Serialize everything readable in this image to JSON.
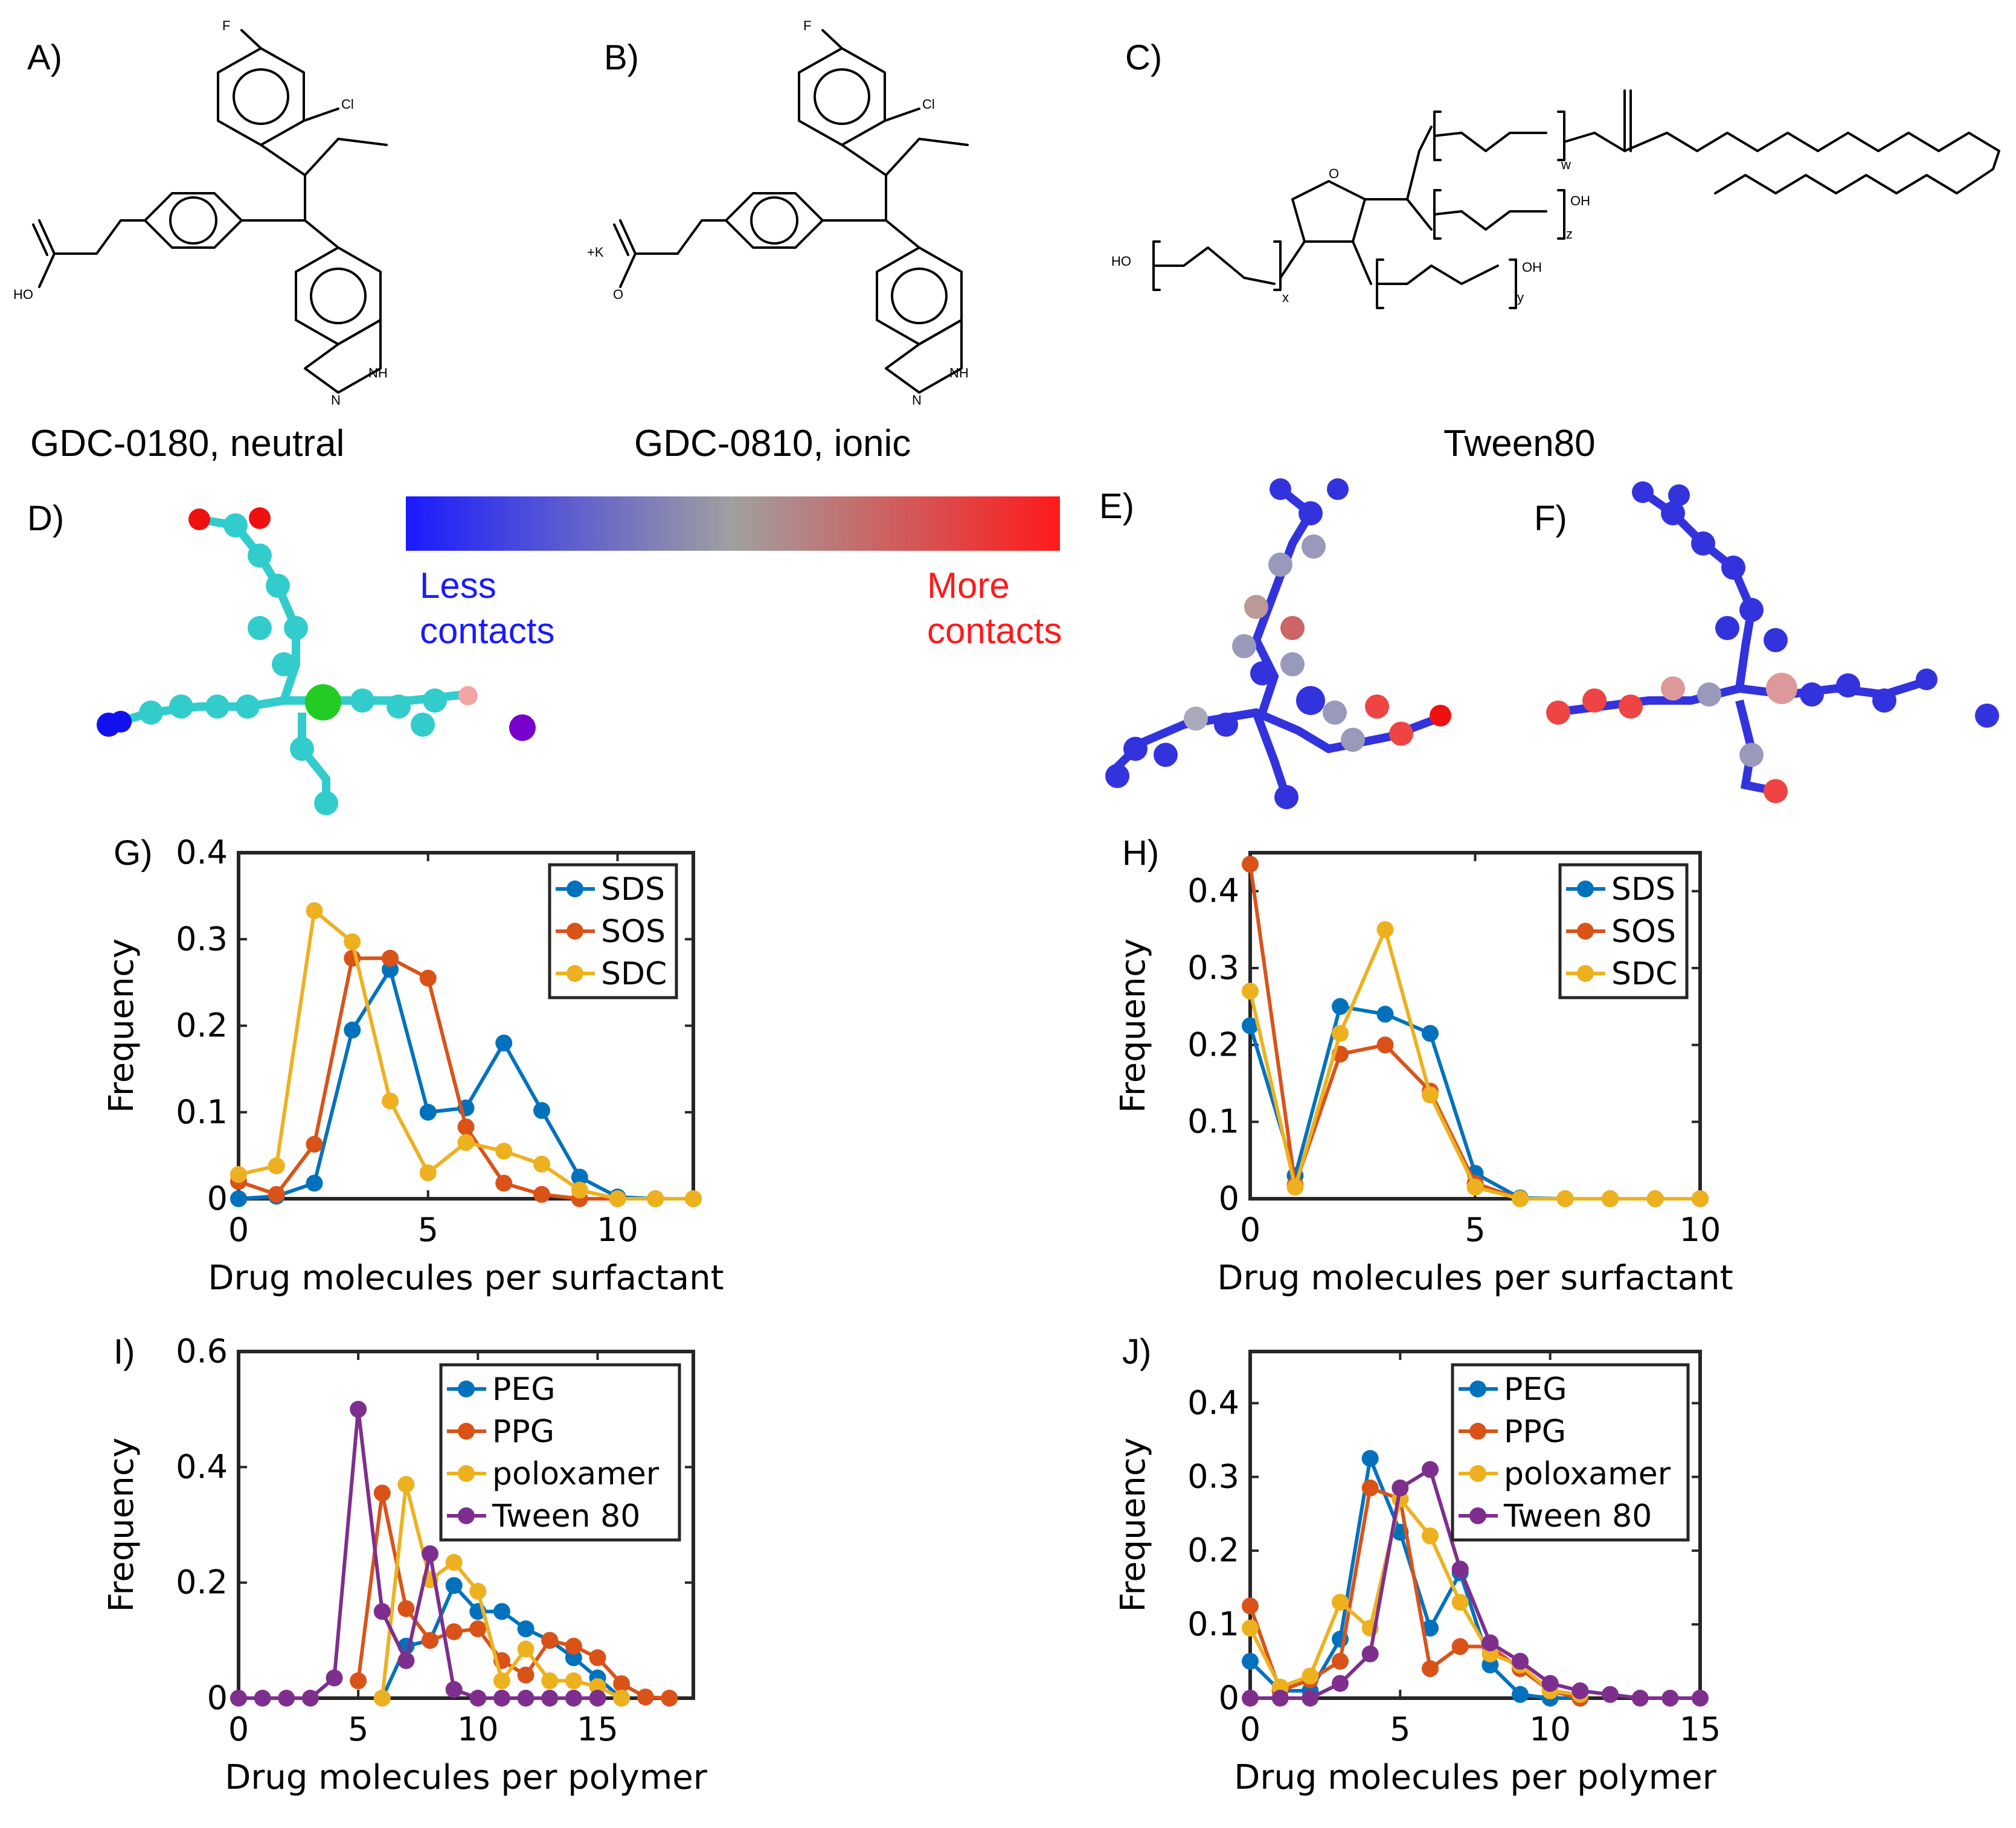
{
  "panels": {
    "a": "A)",
    "b": "B)",
    "c": "C)",
    "d": "D)",
    "e": "E)",
    "f": "F)",
    "g": "G)",
    "h": "H)",
    "i": "I)",
    "j": "J)"
  },
  "molecules": {
    "a": {
      "caption": "GDC-0180, neutral",
      "atoms": {
        "F": "F",
        "Cl": "Cl",
        "HO": "HO",
        "NH": "NH",
        "N": "N"
      }
    },
    "b": {
      "caption": "GDC-0810, ionic",
      "atoms": {
        "F": "F",
        "Cl": "Cl",
        "K": "+K",
        "O": "O",
        "NH": "NH",
        "N": "N"
      }
    },
    "c": {
      "caption": "Tween80",
      "atoms": {
        "HO": "HO",
        "OH": "OH",
        "O": "O",
        "w": "w",
        "x": "x",
        "y": "y",
        "z": "z"
      }
    }
  },
  "colorbar": {
    "low_label_1": "Less",
    "low_label_2": "contacts",
    "high_label_1": "More",
    "high_label_2": "contacts",
    "low_color": "#1a1aff",
    "mid_color": "#a0a0a0",
    "high_color": "#ff1a1a"
  },
  "colors": {
    "SDS": "#0072BD",
    "SOS": "#D95319",
    "SDC": "#EDB120",
    "PEG": "#0072BD",
    "PPG": "#D95319",
    "poloxamer": "#EDB120",
    "Tween 80": "#7E2F8E"
  },
  "chart_data": [
    {
      "id": "G",
      "type": "line",
      "xlabel": "Drug molecules per surfactant",
      "ylabel": "Frequency",
      "xlim": [
        0,
        12
      ],
      "ylim": [
        0,
        0.4
      ],
      "xticks": [
        0,
        5,
        10
      ],
      "yticks": [
        0,
        0.1,
        0.2,
        0.3,
        0.4
      ],
      "legend": "top-right",
      "series": [
        {
          "name": "SDS",
          "x": [
            0,
            1,
            2,
            3,
            4,
            5,
            6,
            7,
            8,
            9,
            10,
            11,
            12
          ],
          "y": [
            0.0,
            0.003,
            0.018,
            0.195,
            0.265,
            0.1,
            0.105,
            0.18,
            0.102,
            0.025,
            0.002,
            0.0,
            0.0
          ]
        },
        {
          "name": "SOS",
          "x": [
            0,
            1,
            2,
            3,
            4,
            5,
            6,
            7,
            8,
            9,
            10,
            11,
            12
          ],
          "y": [
            0.02,
            0.005,
            0.063,
            0.278,
            0.278,
            0.255,
            0.083,
            0.018,
            0.005,
            0.0,
            0.0,
            0.0,
            0.0
          ]
        },
        {
          "name": "SDC",
          "x": [
            0,
            1,
            2,
            3,
            4,
            5,
            6,
            7,
            8,
            9,
            10,
            11,
            12
          ],
          "y": [
            0.028,
            0.038,
            0.333,
            0.297,
            0.113,
            0.03,
            0.065,
            0.055,
            0.04,
            0.01,
            0.0,
            0.0,
            0.0
          ]
        }
      ]
    },
    {
      "id": "H",
      "type": "line",
      "xlabel": "Drug molecules per surfactant",
      "ylabel": "Frequency",
      "xlim": [
        0,
        10
      ],
      "ylim": [
        0,
        0.45
      ],
      "xticks": [
        0,
        5,
        10
      ],
      "yticks": [
        0,
        0.1,
        0.2,
        0.3,
        0.4
      ],
      "legend": "top-right",
      "series": [
        {
          "name": "SDS",
          "x": [
            0,
            1,
            2,
            3,
            4,
            5,
            6,
            7,
            8,
            9,
            10
          ],
          "y": [
            0.225,
            0.03,
            0.25,
            0.24,
            0.215,
            0.033,
            0.001,
            0.0,
            0.0,
            0.0,
            0.0
          ]
        },
        {
          "name": "SOS",
          "x": [
            0,
            1,
            2,
            3,
            4,
            5,
            6,
            7,
            8,
            9,
            10
          ],
          "y": [
            0.435,
            0.018,
            0.188,
            0.2,
            0.14,
            0.02,
            0.0,
            0.0,
            0.0,
            0.0,
            0.0
          ]
        },
        {
          "name": "SDC",
          "x": [
            0,
            1,
            2,
            3,
            4,
            5,
            6,
            7,
            8,
            9,
            10
          ],
          "y": [
            0.27,
            0.015,
            0.215,
            0.35,
            0.135,
            0.015,
            0.0,
            0.0,
            0.0,
            0.0,
            0.0
          ]
        }
      ]
    },
    {
      "id": "I",
      "type": "line",
      "xlabel": "Drug molecules per polymer",
      "ylabel": "Frequency",
      "xlim": [
        0,
        19
      ],
      "ylim": [
        0,
        0.6
      ],
      "xticks": [
        0,
        5,
        10,
        15
      ],
      "yticks": [
        0,
        0.2,
        0.4,
        0.6
      ],
      "legend": "top-right",
      "series": [
        {
          "name": "PEG",
          "x": [
            6,
            7,
            8,
            9,
            10,
            11,
            12,
            13,
            14,
            15,
            16
          ],
          "y": [
            0.0,
            0.09,
            0.1,
            0.195,
            0.15,
            0.15,
            0.12,
            0.1,
            0.07,
            0.035,
            0.0
          ]
        },
        {
          "name": "PPG",
          "x": [
            5,
            6,
            7,
            8,
            9,
            10,
            11,
            12,
            13,
            14,
            15,
            16,
            17,
            18
          ],
          "y": [
            0.03,
            0.355,
            0.155,
            0.1,
            0.115,
            0.12,
            0.065,
            0.04,
            0.1,
            0.09,
            0.07,
            0.025,
            0.002,
            0.0
          ]
        },
        {
          "name": "poloxamer",
          "x": [
            6,
            7,
            8,
            9,
            10,
            11,
            12,
            13,
            14,
            15,
            16
          ],
          "y": [
            0.0,
            0.37,
            0.205,
            0.235,
            0.185,
            0.03,
            0.085,
            0.03,
            0.03,
            0.02,
            0.0
          ]
        },
        {
          "name": "Tween 80",
          "x": [
            0,
            1,
            2,
            3,
            4,
            5,
            6,
            7,
            8,
            9,
            10,
            11,
            12,
            13,
            14,
            15
          ],
          "y": [
            0.0,
            0.0,
            0.0,
            0.0,
            0.035,
            0.5,
            0.15,
            0.065,
            0.25,
            0.015,
            0.0,
            0.0,
            0.0,
            0.0,
            0.0,
            0.0
          ]
        }
      ]
    },
    {
      "id": "J",
      "type": "line",
      "xlabel": "Drug molecules per polymer",
      "ylabel": "Frequency",
      "xlim": [
        0,
        15
      ],
      "ylim": [
        0,
        0.47
      ],
      "xticks": [
        0,
        5,
        10,
        15
      ],
      "yticks": [
        0,
        0.1,
        0.2,
        0.3,
        0.4
      ],
      "legend": "top-right",
      "series": [
        {
          "name": "PEG",
          "x": [
            0,
            1,
            2,
            3,
            4,
            5,
            6,
            7,
            8,
            9,
            10,
            11
          ],
          "y": [
            0.05,
            0.01,
            0.01,
            0.08,
            0.325,
            0.225,
            0.095,
            0.17,
            0.045,
            0.005,
            0.0,
            0.0
          ]
        },
        {
          "name": "PPG",
          "x": [
            0,
            1,
            2,
            3,
            4,
            5,
            6,
            7,
            8,
            9,
            10,
            11
          ],
          "y": [
            0.125,
            0.01,
            0.025,
            0.05,
            0.285,
            0.27,
            0.04,
            0.07,
            0.07,
            0.04,
            0.01,
            0.0
          ]
        },
        {
          "name": "poloxamer",
          "x": [
            0,
            1,
            2,
            3,
            4,
            5,
            6,
            7,
            8,
            9,
            10,
            11
          ],
          "y": [
            0.095,
            0.015,
            0.03,
            0.13,
            0.095,
            0.27,
            0.22,
            0.13,
            0.06,
            0.045,
            0.01,
            0.005
          ]
        },
        {
          "name": "Tween 80",
          "x": [
            0,
            1,
            2,
            3,
            4,
            5,
            6,
            7,
            8,
            9,
            10,
            11,
            12,
            13,
            14,
            15
          ],
          "y": [
            0.0,
            0.0,
            0.0,
            0.02,
            0.06,
            0.285,
            0.31,
            0.175,
            0.075,
            0.05,
            0.02,
            0.01,
            0.005,
            0.0,
            0.0,
            0.0
          ]
        }
      ]
    }
  ]
}
